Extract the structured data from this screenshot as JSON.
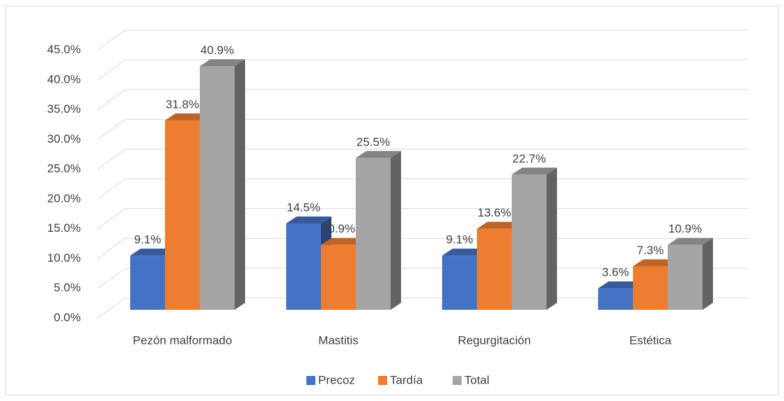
{
  "chart_data": {
    "type": "bar3d",
    "categories": [
      "Pezón malformado",
      "Mastitis",
      "Regurgitación",
      "Estética"
    ],
    "series": [
      {
        "name": "Precoz",
        "color": "#4472c4",
        "values": [
          9.1,
          14.5,
          9.1,
          3.6
        ],
        "value_labels": [
          "9.1%",
          "14.5%",
          "9.1%",
          "3.6%"
        ]
      },
      {
        "name": "Tardía",
        "color": "#ed7d31",
        "values": [
          31.8,
          10.9,
          13.6,
          7.3
        ],
        "value_labels": [
          "31.8%",
          "10.9%",
          "13.6%",
          "7.3%"
        ]
      },
      {
        "name": "Total",
        "color": "#a5a5a5",
        "values": [
          40.9,
          25.5,
          22.7,
          10.9
        ],
        "value_labels": [
          "40.9%",
          "25.5%",
          "22.7%",
          "10.9%"
        ]
      }
    ],
    "ylim": [
      0,
      45
    ],
    "yticks": [
      {
        "value": 0,
        "label": "0.0%"
      },
      {
        "value": 5,
        "label": "5.0%"
      },
      {
        "value": 10,
        "label": "10.0%"
      },
      {
        "value": 15,
        "label": "15.0%"
      },
      {
        "value": 20,
        "label": "20.0%"
      },
      {
        "value": 25,
        "label": "25.0%"
      },
      {
        "value": 30,
        "label": "30.0%"
      },
      {
        "value": 35,
        "label": "35.0%"
      },
      {
        "value": 40,
        "label": "40.0%"
      },
      {
        "value": 45,
        "label": "45.0%"
      }
    ],
    "grid": true,
    "legend": "bottom"
  }
}
